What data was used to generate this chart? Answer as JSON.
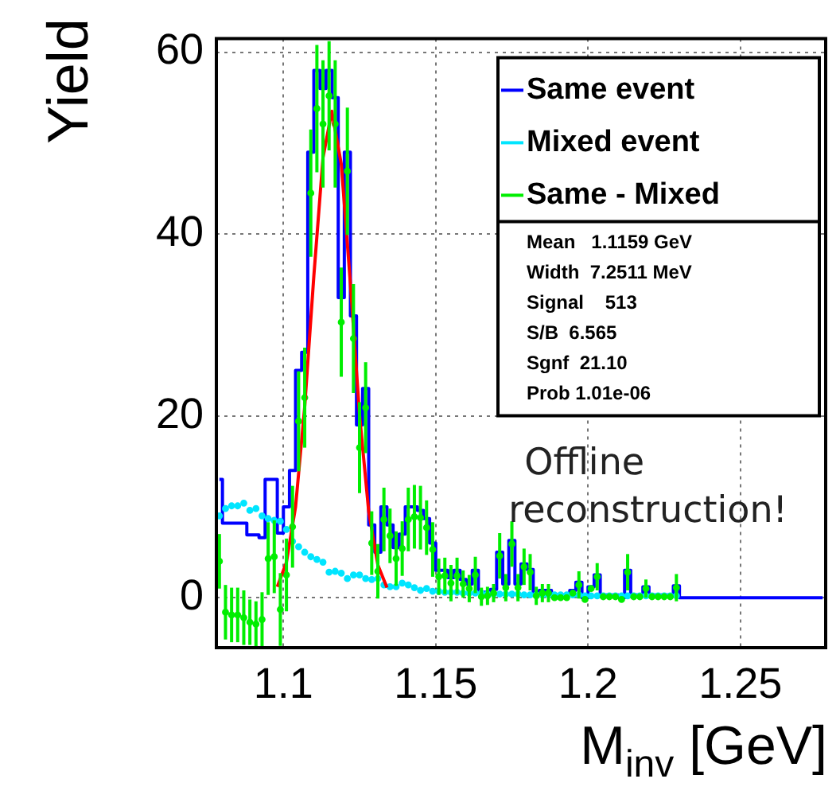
{
  "chart_data": {
    "type": "step",
    "xlabel": "M$_{inv}$ [GeV]",
    "ylabel": "Yield",
    "x": [
      1.079,
      1.081,
      1.083,
      1.085,
      1.087,
      1.089,
      1.091,
      1.093,
      1.095,
      1.097,
      1.099,
      1.101,
      1.103,
      1.105,
      1.107,
      1.109,
      1.111,
      1.113,
      1.115,
      1.117,
      1.119,
      1.121,
      1.123,
      1.125,
      1.127,
      1.129,
      1.131,
      1.133,
      1.135,
      1.137,
      1.139,
      1.141,
      1.143,
      1.145,
      1.147,
      1.149,
      1.151,
      1.153,
      1.155,
      1.157,
      1.159,
      1.161,
      1.163,
      1.165,
      1.167,
      1.169,
      1.171,
      1.173,
      1.175,
      1.177,
      1.179,
      1.181,
      1.183,
      1.185,
      1.187,
      1.189,
      1.191,
      1.193,
      1.195,
      1.197,
      1.199,
      1.201,
      1.203,
      1.205,
      1.207,
      1.209,
      1.211,
      1.213,
      1.215,
      1.217,
      1.219,
      1.221,
      1.223,
      1.225,
      1.227,
      1.229,
      1.231,
      1.233,
      1.235,
      1.237,
      1.239,
      1.241,
      1.243,
      1.245,
      1.247,
      1.249,
      1.251,
      1.253,
      1.255,
      1.257,
      1.259,
      1.261,
      1.263,
      1.265,
      1.267,
      1.269,
      1.271,
      1.273,
      1.275,
      1.277
    ],
    "xlim": [
      1.078,
      1.278
    ],
    "ylim": [
      -5.5,
      61.5
    ],
    "xticks": [
      1.1,
      1.15,
      1.2,
      1.25
    ],
    "yticks": [
      0,
      20,
      40,
      60
    ],
    "grid": true,
    "legend": "top right",
    "annotations": [
      "Mean   1.1159 GeV",
      "Width  7.2511 MeV",
      "Signal    513",
      "S/B  6.565",
      "Sgnf  21.10",
      "Prob 1.01e-06",
      "Offline reconstruction!"
    ],
    "series": [
      {
        "name": "Same event",
        "color": "#0000ff",
        "marker": "none",
        "values": [
          13,
          8.2,
          8.2,
          8.2,
          8.2,
          6.9,
          6.9,
          6.6,
          13,
          13,
          7.1,
          10,
          14,
          25,
          27,
          49,
          58,
          56,
          58,
          55,
          33,
          49,
          31,
          19,
          23,
          8,
          5,
          10,
          8,
          5.5,
          7,
          10,
          10,
          9.6,
          8.7,
          6,
          3,
          3,
          2.2,
          3,
          2,
          1.5,
          3,
          0.6,
          0.6,
          0.9,
          5,
          1.5,
          6.3,
          1.5,
          3.7,
          3.1,
          0.5,
          0.8,
          0.8,
          0.3,
          0.3,
          0.3,
          0.8,
          1.7,
          0,
          1.2,
          2.5,
          0.3,
          0.3,
          0.3,
          0,
          3,
          0.3,
          0.3,
          1.2,
          0.3,
          0.3,
          0.3,
          0.3,
          1.3,
          0,
          0,
          0,
          0,
          0,
          0,
          0,
          0,
          0,
          0,
          0,
          0,
          0,
          0,
          0,
          0,
          0,
          0,
          0,
          0,
          0,
          0,
          0,
          0
        ]
      },
      {
        "name": "Mixed event",
        "type": "scatter",
        "color": "#00e5ff",
        "marker": "circle",
        "values": [
          9,
          9.8,
          10.1,
          10.1,
          10.4,
          9.6,
          9.8,
          9,
          8.7,
          8.5,
          8.4,
          7.5,
          6.2,
          5.6,
          5,
          4.5,
          4.2,
          3.9,
          2.8,
          2.9,
          2.7,
          2.1,
          2.5,
          2.5,
          2.1,
          2,
          2.1,
          1.4,
          1.2,
          1.2,
          1.6,
          1.4,
          1.1,
          0.8,
          1,
          0.7,
          0.7,
          0.6,
          0.6,
          0.6,
          0.5,
          0.5,
          0.5,
          0.5,
          0.4,
          0.4,
          0.4,
          0.4,
          0.4,
          0.4,
          0.3,
          0.3,
          0.3,
          0.3,
          0.3,
          0.3,
          0.3,
          0.3,
          0.3,
          0.3,
          0.2,
          0.2,
          0.2,
          0.2,
          0.2,
          0.2,
          0.2,
          0.2,
          0.2,
          0.2,
          0.2,
          0.2,
          0.2,
          0.2,
          0.2,
          0.2,
          null,
          null,
          null,
          null,
          null,
          null,
          null,
          null,
          null,
          null,
          null,
          null,
          null,
          null,
          null,
          null,
          null,
          null,
          null,
          null,
          null,
          null,
          null,
          null
        ]
      },
      {
        "name": "Same - Mixed",
        "type": "scatter",
        "color": "#00ee00",
        "marker": "circle",
        "values": [
          4,
          -1.6,
          -1.9,
          -1.9,
          -2.2,
          -2.7,
          -2.9,
          -2.4,
          4.3,
          4.5,
          -1.3,
          2.5,
          7.8,
          19.4,
          22,
          44.5,
          53.8,
          52.1,
          55.2,
          52.1,
          30.3,
          46.9,
          28.5,
          16.5,
          20.9,
          6,
          2.9,
          8.6,
          6.8,
          4.3,
          5.4,
          8.6,
          8.9,
          8.8,
          7.7,
          5.3,
          2.3,
          2.4,
          1.6,
          2.4,
          1.5,
          1,
          2.5,
          0.1,
          0.2,
          0.5,
          4.6,
          1.1,
          5.9,
          1.1,
          3.4,
          2.8,
          0.2,
          0.5,
          0.5,
          0,
          0,
          0,
          0.5,
          1.4,
          -0.2,
          1,
          2.3,
          0.1,
          0.1,
          0.1,
          -0.2,
          2.8,
          0.1,
          0.1,
          1,
          0.1,
          0.1,
          0.1,
          0.1,
          1.1,
          null,
          null,
          null,
          null,
          null,
          null,
          null,
          null,
          null,
          null,
          null,
          null,
          null,
          null,
          null,
          null,
          null,
          null,
          null,
          null,
          null,
          null,
          null,
          null
        ],
        "errors": [
          3,
          3,
          3,
          3,
          3,
          2.5,
          2.5,
          3,
          4,
          4,
          4,
          4,
          4.5,
          5.5,
          5.5,
          7,
          7,
          7,
          6,
          7,
          6,
          7,
          6,
          5,
          5,
          3.5,
          3,
          3.5,
          3,
          3,
          3,
          3.5,
          3.5,
          3.5,
          3,
          3,
          2,
          2,
          2,
          2,
          1.5,
          1.5,
          2,
          1,
          1,
          1,
          2.5,
          1.5,
          2.5,
          1.5,
          2,
          2,
          1,
          1,
          1,
          null,
          null,
          null,
          null,
          1.5,
          null,
          null,
          1.5,
          null,
          null,
          null,
          null,
          2,
          null,
          null,
          1,
          null,
          null,
          null,
          null,
          1.5,
          null,
          null,
          null,
          null,
          null,
          null,
          null,
          null,
          null,
          null,
          null,
          null,
          null,
          null,
          null,
          null,
          null,
          null,
          null,
          null,
          null,
          null,
          null,
          null
        ]
      },
      {
        "type": "line",
        "color": "#ff0000",
        "marker": "none",
        "x": [
          1.098,
          1.101,
          1.104,
          1.107,
          1.11,
          1.113,
          1.1159,
          1.119,
          1.122,
          1.125,
          1.128,
          1.131,
          1.134
        ],
        "values": [
          1.2,
          3.9,
          10,
          21,
          35.4,
          48.4,
          53.5,
          47.7,
          34.5,
          20.1,
          9.5,
          3.6,
          1.1
        ]
      }
    ]
  }
}
